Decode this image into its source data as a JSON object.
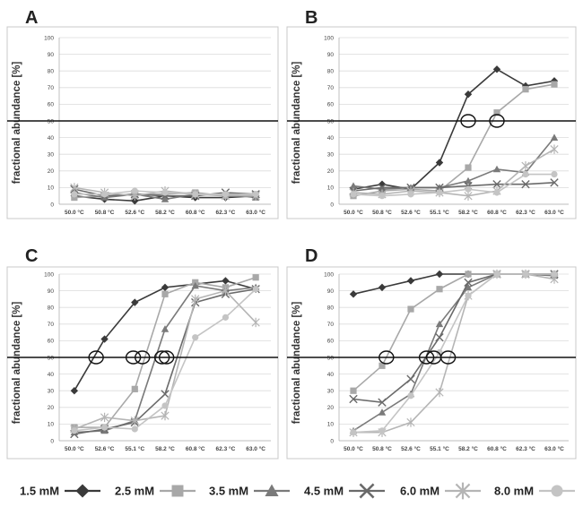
{
  "ylabel": "fractional abundance [%]",
  "yticks": [
    "0",
    "10",
    "20",
    "30",
    "40",
    "50",
    "60",
    "70",
    "80",
    "90",
    "100"
  ],
  "threshold": 50,
  "colors": {
    "1.5 mM": "#3a3a3a",
    "2.5 mM": "#a8a8a8",
    "3.5 mM": "#7a7a7a",
    "4.5 mM": "#6a6a6a",
    "6.0 mM": "#b5b5b5",
    "8.0 mM": "#c4c4c4",
    "threshold": "#111111"
  },
  "legend": [
    {
      "label": "1.5 mM",
      "marker": "diamond"
    },
    {
      "label": "2.5 mM",
      "marker": "square"
    },
    {
      "label": "3.5 mM",
      "marker": "triangle"
    },
    {
      "label": "4.5 mM",
      "marker": "x"
    },
    {
      "label": "6.0 mM",
      "marker": "star"
    },
    {
      "label": "8.0 mM",
      "marker": "circle"
    }
  ],
  "chart_data": [
    {
      "panel": "A",
      "type": "line",
      "categories": [
        "50.0 °C",
        "50.8 °C",
        "52.6 °C",
        "58.2 °C",
        "60.8 °C",
        "62.3 °C",
        "63.0 °C"
      ],
      "ylim": [
        0,
        100
      ],
      "ylabel": "fractional abundance [%]",
      "series": [
        {
          "name": "1.5 mM",
          "marker": "diamond",
          "values": [
            5,
            3,
            2,
            5,
            4,
            4,
            5
          ]
        },
        {
          "name": "2.5 mM",
          "marker": "square",
          "values": [
            4,
            5,
            6,
            6,
            7,
            5,
            6
          ]
        },
        {
          "name": "3.5 mM",
          "marker": "triangle",
          "values": [
            7,
            4,
            6,
            3,
            6,
            6,
            4
          ]
        },
        {
          "name": "4.5 mM",
          "marker": "x",
          "values": [
            9,
            5,
            6,
            5,
            5,
            7,
            6
          ]
        },
        {
          "name": "6.0 mM",
          "marker": "star",
          "values": [
            10,
            7,
            5,
            8,
            6,
            5,
            5
          ]
        },
        {
          "name": "8.0 mM",
          "marker": "circle",
          "values": [
            6,
            6,
            8,
            7,
            6,
            6,
            6
          ]
        }
      ],
      "crossings": []
    },
    {
      "panel": "B",
      "type": "line",
      "categories": [
        "50.0 °C",
        "50.8 °C",
        "52.6 °C",
        "55.1 °C",
        "58.2 °C",
        "60.8 °C",
        "62.3 °C",
        "63.0 °C"
      ],
      "ylim": [
        0,
        100
      ],
      "ylabel": "fractional abundance [%]",
      "series": [
        {
          "name": "1.5 mM",
          "marker": "diamond",
          "values": [
            9,
            12,
            9,
            25,
            66,
            81,
            71,
            74
          ]
        },
        {
          "name": "2.5 mM",
          "marker": "square",
          "values": [
            5,
            8,
            9,
            8,
            22,
            55,
            69,
            72
          ]
        },
        {
          "name": "3.5 mM",
          "marker": "triangle",
          "values": [
            11,
            9,
            10,
            10,
            14,
            21,
            19,
            40
          ]
        },
        {
          "name": "4.5 mM",
          "marker": "x",
          "values": [
            8,
            10,
            10,
            10,
            11,
            12,
            12,
            13
          ]
        },
        {
          "name": "6.0 mM",
          "marker": "star",
          "values": [
            7,
            6,
            8,
            7,
            5,
            8,
            23,
            33
          ]
        },
        {
          "name": "8.0 mM",
          "marker": "circle",
          "values": [
            6,
            5,
            6,
            7,
            9,
            7,
            18,
            18
          ]
        }
      ],
      "crossings": [
        4.0,
        5.0
      ]
    },
    {
      "panel": "C",
      "type": "line",
      "categories": [
        "50.0 °C",
        "52.6 °C",
        "55.1 °C",
        "58.2 °C",
        "60.8 °C",
        "62.3 °C",
        "63.0 °C"
      ],
      "ylim": [
        0,
        100
      ],
      "ylabel": "fractional abundance [%]",
      "series": [
        {
          "name": "1.5 mM",
          "marker": "diamond",
          "values": [
            30,
            61,
            83,
            92,
            94,
            96,
            91
          ]
        },
        {
          "name": "2.5 mM",
          "marker": "square",
          "values": [
            8,
            8,
            31,
            88,
            95,
            92,
            98
          ]
        },
        {
          "name": "3.5 mM",
          "marker": "triangle",
          "values": [
            5,
            6,
            12,
            67,
            93,
            90,
            92
          ]
        },
        {
          "name": "4.5 mM",
          "marker": "x",
          "values": [
            4,
            7,
            11,
            28,
            83,
            88,
            91
          ]
        },
        {
          "name": "6.0 mM",
          "marker": "star",
          "values": [
            7,
            14,
            12,
            15,
            85,
            90,
            71
          ]
        },
        {
          "name": "8.0 mM",
          "marker": "circle",
          "values": [
            6,
            8,
            7,
            21,
            62,
            74,
            91
          ]
        }
      ],
      "crossings": [
        0.72,
        1.95,
        2.25,
        2.9,
        3.05
      ]
    },
    {
      "panel": "D",
      "type": "line",
      "categories": [
        "50.0 °C",
        "50.8 °C",
        "52.6 °C",
        "55.1 °C",
        "58.2 °C",
        "60.8 °C",
        "62.3 °C",
        "63.0 °C"
      ],
      "ylim": [
        0,
        100
      ],
      "ylabel": "fractional abundance [%]",
      "series": [
        {
          "name": "1.5 mM",
          "marker": "diamond",
          "values": [
            88,
            92,
            96,
            100,
            100,
            100,
            100,
            100
          ]
        },
        {
          "name": "2.5 mM",
          "marker": "square",
          "values": [
            30,
            45,
            79,
            91,
            100,
            100,
            100,
            100
          ]
        },
        {
          "name": "3.5 mM",
          "marker": "triangle",
          "values": [
            6,
            17,
            28,
            70,
            92,
            100,
            100,
            99
          ]
        },
        {
          "name": "4.5 mM",
          "marker": "x",
          "values": [
            25,
            23,
            37,
            62,
            95,
            100,
            100,
            100
          ]
        },
        {
          "name": "6.0 mM",
          "marker": "star",
          "values": [
            5,
            5,
            11,
            29,
            87,
            100,
            100,
            97
          ]
        },
        {
          "name": "8.0 mM",
          "marker": "circle",
          "values": [
            5,
            6,
            27,
            53,
            87,
            100,
            100,
            100
          ]
        }
      ],
      "crossings": [
        1.15,
        2.55,
        2.8,
        3.3
      ]
    }
  ]
}
